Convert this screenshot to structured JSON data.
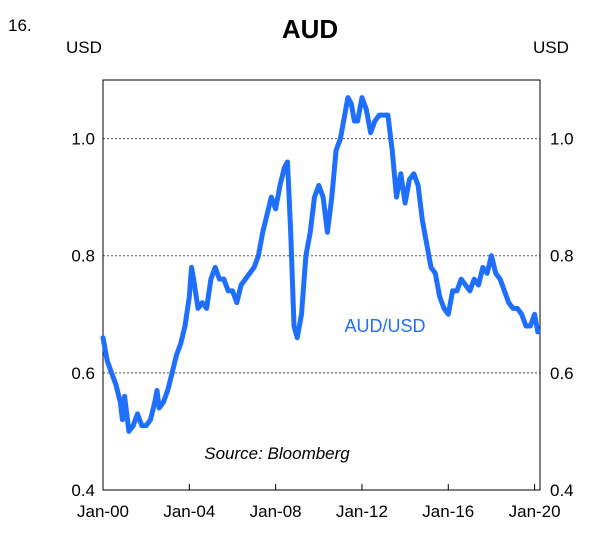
{
  "figure": {
    "number": "16.",
    "title": "AUD"
  },
  "chart_data": {
    "type": "line",
    "title": "AUD",
    "ylabel_left": "USD",
    "ylabel_right": "USD",
    "ylim": [
      0.4,
      1.1
    ],
    "yticks": [
      0.4,
      0.6,
      0.8,
      1.0
    ],
    "ytick_labels": [
      "0.4",
      "0.6",
      "0.8",
      "1.0"
    ],
    "xlim": [
      2000.0,
      2020.25
    ],
    "xticks": [
      2000,
      2004,
      2008,
      2012,
      2016,
      2020
    ],
    "xtick_labels": [
      "Jan-00",
      "Jan-04",
      "Jan-08",
      "Jan-12",
      "Jan-16",
      "Jan-20"
    ],
    "grid": "horizontal dotted",
    "annotations": {
      "series_label": "AUD/USD",
      "source": "Source: Bloomberg"
    },
    "series": [
      {
        "name": "AUD/USD",
        "color": "#1f6fff",
        "points": [
          [
            2000.0,
            0.66
          ],
          [
            2000.2,
            0.62
          ],
          [
            2000.4,
            0.6
          ],
          [
            2000.6,
            0.58
          ],
          [
            2000.8,
            0.55
          ],
          [
            2000.9,
            0.52
          ],
          [
            2001.0,
            0.56
          ],
          [
            2001.2,
            0.5
          ],
          [
            2001.4,
            0.51
          ],
          [
            2001.6,
            0.53
          ],
          [
            2001.8,
            0.51
          ],
          [
            2002.0,
            0.51
          ],
          [
            2002.2,
            0.52
          ],
          [
            2002.4,
            0.55
          ],
          [
            2002.5,
            0.57
          ],
          [
            2002.6,
            0.54
          ],
          [
            2002.8,
            0.55
          ],
          [
            2003.0,
            0.57
          ],
          [
            2003.2,
            0.6
          ],
          [
            2003.4,
            0.63
          ],
          [
            2003.6,
            0.65
          ],
          [
            2003.8,
            0.68
          ],
          [
            2004.0,
            0.73
          ],
          [
            2004.1,
            0.78
          ],
          [
            2004.2,
            0.76
          ],
          [
            2004.4,
            0.71
          ],
          [
            2004.6,
            0.72
          ],
          [
            2004.8,
            0.71
          ],
          [
            2005.0,
            0.76
          ],
          [
            2005.2,
            0.78
          ],
          [
            2005.4,
            0.76
          ],
          [
            2005.6,
            0.76
          ],
          [
            2005.8,
            0.74
          ],
          [
            2006.0,
            0.74
          ],
          [
            2006.2,
            0.72
          ],
          [
            2006.4,
            0.75
          ],
          [
            2006.6,
            0.76
          ],
          [
            2006.8,
            0.77
          ],
          [
            2007.0,
            0.78
          ],
          [
            2007.2,
            0.8
          ],
          [
            2007.4,
            0.84
          ],
          [
            2007.6,
            0.87
          ],
          [
            2007.8,
            0.9
          ],
          [
            2008.0,
            0.88
          ],
          [
            2008.2,
            0.92
          ],
          [
            2008.4,
            0.95
          ],
          [
            2008.55,
            0.96
          ],
          [
            2008.7,
            0.84
          ],
          [
            2008.85,
            0.68
          ],
          [
            2009.0,
            0.66
          ],
          [
            2009.2,
            0.7
          ],
          [
            2009.4,
            0.8
          ],
          [
            2009.6,
            0.84
          ],
          [
            2009.8,
            0.9
          ],
          [
            2010.0,
            0.92
          ],
          [
            2010.2,
            0.9
          ],
          [
            2010.4,
            0.84
          ],
          [
            2010.6,
            0.9
          ],
          [
            2010.8,
            0.98
          ],
          [
            2011.0,
            1.0
          ],
          [
            2011.2,
            1.04
          ],
          [
            2011.35,
            1.07
          ],
          [
            2011.5,
            1.06
          ],
          [
            2011.65,
            1.03
          ],
          [
            2011.8,
            1.03
          ],
          [
            2012.0,
            1.07
          ],
          [
            2012.2,
            1.05
          ],
          [
            2012.4,
            1.01
          ],
          [
            2012.6,
            1.03
          ],
          [
            2012.8,
            1.04
          ],
          [
            2013.0,
            1.04
          ],
          [
            2013.2,
            1.04
          ],
          [
            2013.4,
            0.98
          ],
          [
            2013.6,
            0.9
          ],
          [
            2013.8,
            0.94
          ],
          [
            2014.0,
            0.89
          ],
          [
            2014.2,
            0.93
          ],
          [
            2014.4,
            0.94
          ],
          [
            2014.6,
            0.92
          ],
          [
            2014.8,
            0.86
          ],
          [
            2015.0,
            0.82
          ],
          [
            2015.2,
            0.78
          ],
          [
            2015.4,
            0.77
          ],
          [
            2015.6,
            0.73
          ],
          [
            2015.8,
            0.71
          ],
          [
            2016.0,
            0.7
          ],
          [
            2016.2,
            0.74
          ],
          [
            2016.4,
            0.74
          ],
          [
            2016.6,
            0.76
          ],
          [
            2016.8,
            0.75
          ],
          [
            2017.0,
            0.74
          ],
          [
            2017.2,
            0.76
          ],
          [
            2017.4,
            0.75
          ],
          [
            2017.6,
            0.78
          ],
          [
            2017.8,
            0.77
          ],
          [
            2018.0,
            0.8
          ],
          [
            2018.2,
            0.77
          ],
          [
            2018.4,
            0.76
          ],
          [
            2018.6,
            0.74
          ],
          [
            2018.8,
            0.72
          ],
          [
            2019.0,
            0.71
          ],
          [
            2019.2,
            0.71
          ],
          [
            2019.4,
            0.7
          ],
          [
            2019.6,
            0.68
          ],
          [
            2019.8,
            0.68
          ],
          [
            2020.0,
            0.7
          ],
          [
            2020.15,
            0.67
          ]
        ]
      }
    ]
  }
}
